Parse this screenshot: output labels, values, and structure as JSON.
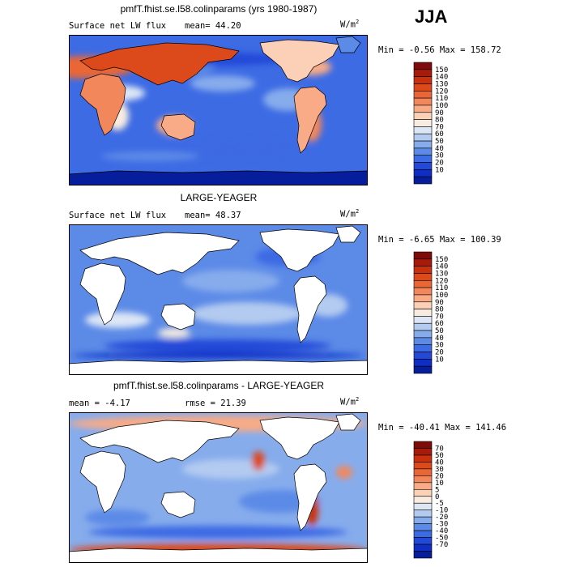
{
  "season": "JJA",
  "panels": [
    {
      "title": "pmfT.fhist.se.l58.colinparams (yrs 1980-1987)",
      "left_label": "Surface net LW flux",
      "right_label": "mean=  44.20",
      "units": "W/m",
      "units_exp": "2",
      "minmax": "Min =  -0.56 Max = 158.72",
      "land_mask": false,
      "colorbar": {
        "ticks": [
          "150",
          "140",
          "130",
          "120",
          "110",
          "100",
          "90",
          "80",
          "70",
          "60",
          "50",
          "40",
          "30",
          "20",
          "10"
        ],
        "colors": [
          "#7f0a0a",
          "#a61b0c",
          "#c8300e",
          "#dc4a1c",
          "#ea6636",
          "#f3875c",
          "#f8ab86",
          "#fbd0b6",
          "#f7ecdf",
          "#dce6f5",
          "#b3cbf0",
          "#86acec",
          "#5c8ae7",
          "#3d6be4",
          "#2448d8",
          "#0f2ec4",
          "#061d9c"
        ]
      },
      "chart_data": {
        "type": "heatmap",
        "title": "pmfT.fhist.se.l58.colinparams (yrs 1980-1987)",
        "variable": "Surface net LW flux",
        "mean": 44.2,
        "min": -0.56,
        "max": 158.72,
        "units": "W/m2",
        "levels": [
          10,
          20,
          30,
          40,
          50,
          60,
          70,
          80,
          90,
          100,
          110,
          120,
          130,
          140,
          150
        ]
      }
    },
    {
      "title": "LARGE-YEAGER",
      "left_label": "Surface net LW flux",
      "right_label": "mean=  48.37",
      "units": "W/m",
      "units_exp": "2",
      "minmax": "Min =  -6.65 Max = 100.39",
      "land_mask": true,
      "colorbar": {
        "ticks": [
          "150",
          "140",
          "130",
          "120",
          "110",
          "100",
          "90",
          "80",
          "70",
          "60",
          "50",
          "40",
          "30",
          "20",
          "10"
        ],
        "colors": [
          "#7f0a0a",
          "#a61b0c",
          "#c8300e",
          "#dc4a1c",
          "#ea6636",
          "#f3875c",
          "#f8ab86",
          "#fbd0b6",
          "#f7ecdf",
          "#dce6f5",
          "#b3cbf0",
          "#86acec",
          "#5c8ae7",
          "#3d6be4",
          "#2448d8",
          "#0f2ec4",
          "#061d9c"
        ]
      },
      "chart_data": {
        "type": "heatmap",
        "title": "LARGE-YEAGER",
        "variable": "Surface net LW flux",
        "mean": 48.37,
        "min": -6.65,
        "max": 100.39,
        "units": "W/m2",
        "levels": [
          10,
          20,
          30,
          40,
          50,
          60,
          70,
          80,
          90,
          100,
          110,
          120,
          130,
          140,
          150
        ]
      }
    },
    {
      "title": "pmfT.fhist.se.l58.colinparams - LARGE-YEAGER",
      "left_label": "mean =  -4.17",
      "right_label": "rmse =  21.39",
      "units": "W/m",
      "units_exp": "2",
      "minmax": "Min = -40.41 Max = 141.46",
      "land_mask": true,
      "colorbar": {
        "ticks": [
          "70",
          "50",
          "40",
          "30",
          "20",
          "10",
          "5",
          "0",
          "-5",
          "-10",
          "-20",
          "-30",
          "-40",
          "-50",
          "-70"
        ],
        "colors": [
          "#7f0a0a",
          "#a61b0c",
          "#c8300e",
          "#dc4a1c",
          "#ea6636",
          "#f3875c",
          "#f8ab86",
          "#fbd0b6",
          "#f7ecdf",
          "#dce6f5",
          "#b3cbf0",
          "#86acec",
          "#5c8ae7",
          "#3d6be4",
          "#2448d8",
          "#0f2ec4",
          "#061d9c"
        ]
      },
      "chart_data": {
        "type": "heatmap",
        "title": "pmfT.fhist.se.l58.colinparams - LARGE-YEAGER",
        "mean": -4.17,
        "rmse": 21.39,
        "min": -40.41,
        "max": 141.46,
        "units": "W/m2",
        "levels": [
          -70,
          -50,
          -40,
          -30,
          -20,
          -10,
          -5,
          0,
          5,
          10,
          20,
          30,
          40,
          50,
          70
        ]
      }
    }
  ]
}
